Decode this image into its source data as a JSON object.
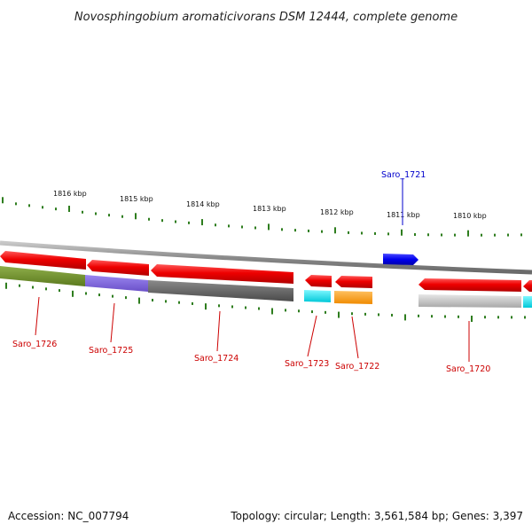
{
  "title": "Novosphingobium aromaticivorans DSM 12444, complete genome",
  "footer": {
    "accession": "Accession: NC_007794",
    "summary": "Topology: circular; Length: 3,561,584 bp; Genes: 3,397"
  },
  "scale": {
    "labels": [
      "1816 kbp",
      "1815 kbp",
      "1814 kbp",
      "1813 kbp",
      "1812 kbp",
      "1811 kbp",
      "1810 kbp"
    ]
  },
  "genes": [
    {
      "id": "Saro_1726",
      "strand": "reverse",
      "color": "#cc0000"
    },
    {
      "id": "Saro_1725",
      "strand": "reverse",
      "color": "#cc0000"
    },
    {
      "id": "Saro_1724",
      "strand": "reverse",
      "color": "#cc0000"
    },
    {
      "id": "Saro_1723",
      "strand": "reverse",
      "color": "#cc0000"
    },
    {
      "id": "Saro_1722",
      "strand": "reverse",
      "color": "#cc0000"
    },
    {
      "id": "Saro_1721",
      "strand": "forward",
      "color": "#0000cc"
    },
    {
      "id": "Saro_1720",
      "strand": "reverse",
      "color": "#cc0000"
    }
  ],
  "colors": {
    "forward_gene": "#0000ee",
    "reverse_gene": "#ee0000",
    "backbone": "#888888",
    "ticks": "#2e7d1e"
  }
}
